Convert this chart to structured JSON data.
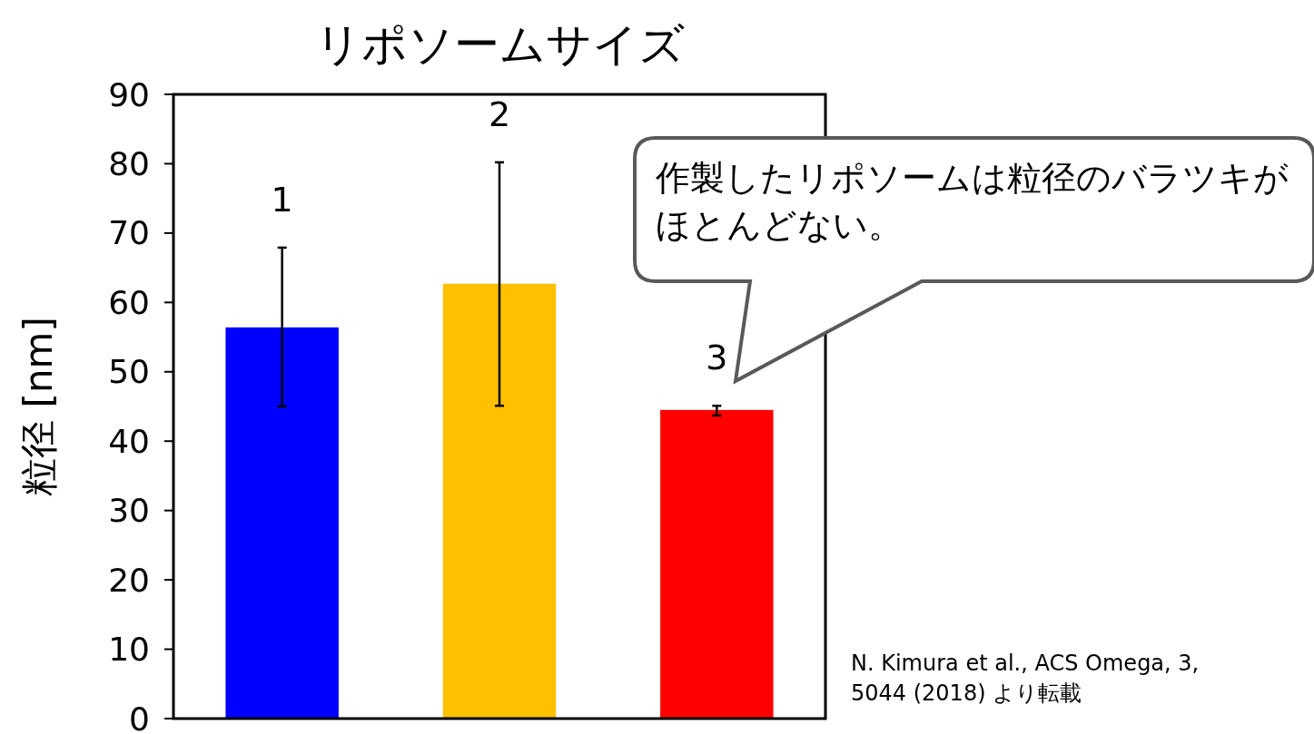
{
  "chart_data": {
    "type": "bar",
    "title": "リポソームサイズ",
    "ylabel": "粒径 [nm]",
    "categories": [
      null,
      null,
      null
    ],
    "values": [
      56.4,
      62.7,
      44.5
    ],
    "colors": [
      "#0000ff",
      "#ffc000",
      "#ff0000"
    ],
    "errors": [
      [
        45.0,
        67.9
      ],
      [
        45.1,
        80.2
      ],
      [
        43.7,
        45.1
      ]
    ],
    "ylim": [
      0,
      90
    ],
    "yticks": [
      0,
      10,
      20,
      30,
      40,
      50,
      60,
      70,
      80,
      90
    ],
    "grid": false,
    "annotations": [
      "1",
      "2",
      "3",
      "作製したリポソームは粒径のバラツキがほとんどない。",
      "N. Kimura et al., ACS Omega, 3, 5044 (2018) より転載"
    ]
  }
}
